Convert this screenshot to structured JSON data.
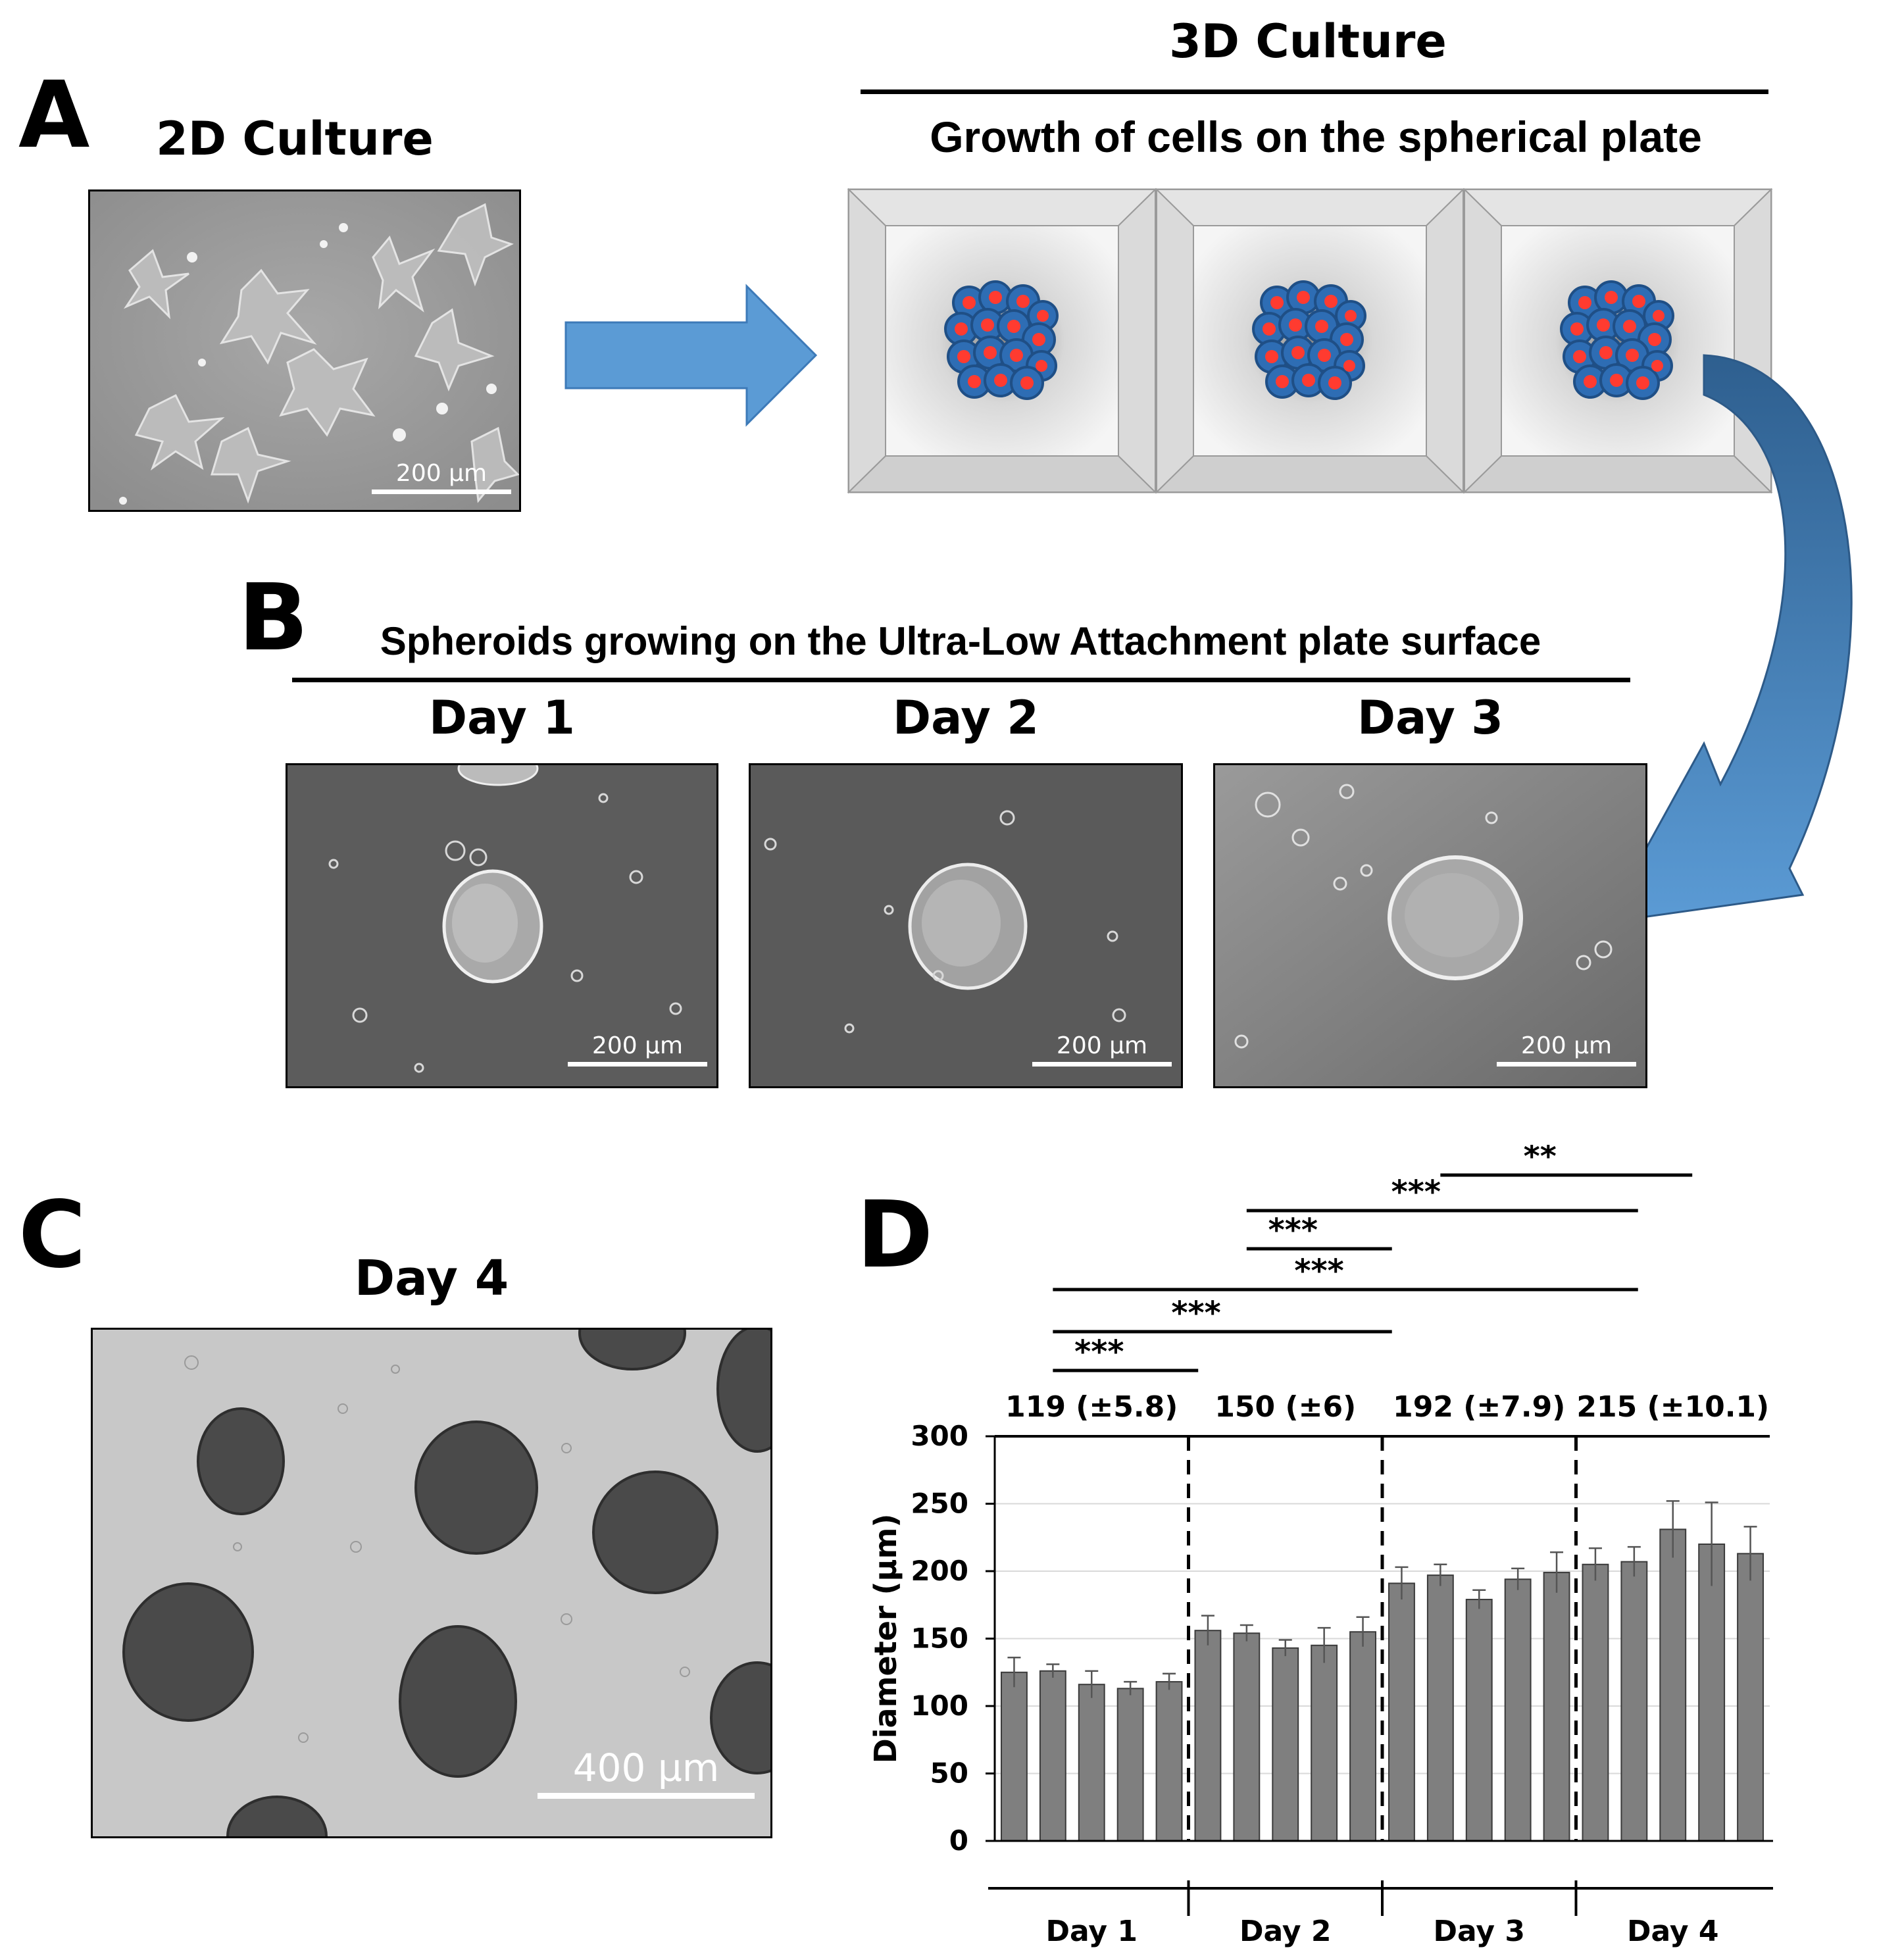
{
  "panels": {
    "a": {
      "letter": "A",
      "culture_2d_title": "2D Culture",
      "culture_3d_title": "3D Culture",
      "growth_subtitle": "Growth of cells on the spherical plate",
      "scale_label": "200 µm"
    },
    "b": {
      "letter": "B",
      "title": "Spheroids growing on the Ultra-Low Attachment plate surface",
      "days": [
        "Day 1",
        "Day 2",
        "Day 3"
      ],
      "scale_label": "200 µm"
    },
    "c": {
      "letter": "C",
      "title": "Day 4",
      "scale_label": "400 µm"
    },
    "d": {
      "letter": "D"
    }
  },
  "colors": {
    "arrow_blue": "#5b9bd5",
    "arrow_dark": "#2e5f8f",
    "cell_blue": "#2e6db4",
    "nucleus_red": "#ff3b30",
    "bar_fill": "#7f7f7f"
  },
  "chart_data": {
    "type": "bar",
    "ylabel": "Diameter (µm)",
    "ylim": [
      0,
      300
    ],
    "yticks": [
      0,
      50,
      100,
      150,
      200,
      250,
      300
    ],
    "grid": true,
    "groups": [
      "Day 1",
      "Day 2",
      "Day 3",
      "Day 4"
    ],
    "group_means": [
      "119 (±5.8)",
      "150 (±6)",
      "192 (±7.9)",
      "215 (±10.1)"
    ],
    "values": [
      [
        125,
        126,
        116,
        113,
        118
      ],
      [
        156,
        154,
        143,
        145,
        155
      ],
      [
        191,
        197,
        179,
        194,
        199
      ],
      [
        205,
        207,
        231,
        220,
        213
      ]
    ],
    "errors": [
      [
        11,
        5,
        10,
        5,
        6
      ],
      [
        11,
        6,
        6,
        13,
        11
      ],
      [
        12,
        8,
        7,
        8,
        15
      ],
      [
        12,
        11,
        21,
        31,
        20
      ]
    ],
    "significance": [
      {
        "label": "***",
        "from": "Day 1",
        "to": "Day 2"
      },
      {
        "label": "***",
        "from": "Day 1",
        "to": "Day 3"
      },
      {
        "label": "***",
        "from": "Day 1",
        "to": "Day 4"
      },
      {
        "label": "***",
        "from": "Day 2",
        "to": "Day 3"
      },
      {
        "label": "***",
        "from": "Day 2",
        "to": "Day 4"
      },
      {
        "label": "**",
        "from": "Day 3",
        "to": "Day 4"
      }
    ]
  }
}
